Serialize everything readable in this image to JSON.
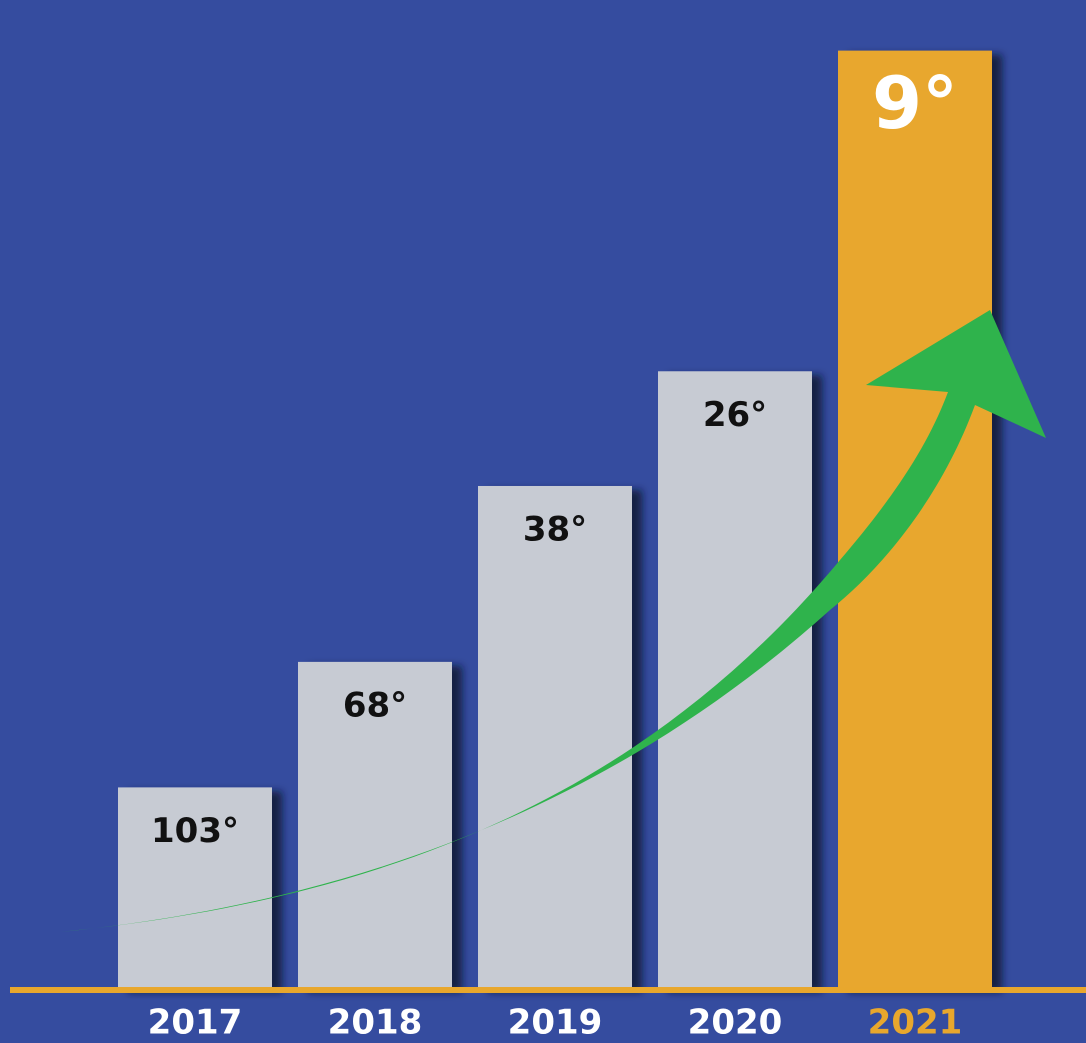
{
  "chart_data": {
    "type": "bar",
    "categories": [
      "2017",
      "2018",
      "2019",
      "2020",
      "2021"
    ],
    "values": [
      103,
      68,
      38,
      26,
      9
    ],
    "value_labels": [
      "103°",
      "68°",
      "38°",
      "26°",
      "9°"
    ],
    "colors": [
      "#c7cbd3",
      "#c7cbd3",
      "#c7cbd3",
      "#c7cbd3",
      "#e8a72d"
    ],
    "value_label_colors": [
      "#111111",
      "#111111",
      "#111111",
      "#111111",
      "#ffffff"
    ],
    "category_label_colors": [
      "#ffffff",
      "#ffffff",
      "#ffffff",
      "#ffffff",
      "#e8a72d"
    ],
    "ylim": [
      200,
      8
    ],
    "log": true,
    "grid": false
  }
}
